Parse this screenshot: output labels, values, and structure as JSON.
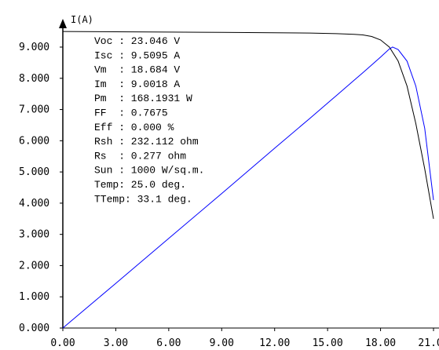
{
  "chart_data": {
    "type": "line",
    "ylabel": "I(A)",
    "xlabel": "",
    "xlim": [
      0,
      21.0
    ],
    "ylim": [
      0,
      9.5095
    ],
    "x_ticks": [
      "0.00",
      "3.00",
      "6.00",
      "9.00",
      "12.00",
      "15.00",
      "18.00",
      "21.00"
    ],
    "x_tick_values": [
      0,
      3,
      6,
      9,
      12,
      15,
      18,
      21
    ],
    "y_ticks": [
      "0.000",
      "1.000",
      "2.000",
      "3.000",
      "4.000",
      "5.000",
      "6.000",
      "7.000",
      "8.000",
      "9.000"
    ],
    "y_tick_values": [
      0,
      1,
      2,
      3,
      4,
      5,
      6,
      7,
      8,
      9
    ],
    "grid": false,
    "series": [
      {
        "color": "#000000",
        "x": [
          0,
          3,
          6,
          9,
          12,
          14,
          15.5,
          16.5,
          17.0,
          17.5,
          18.0,
          18.5,
          19.0,
          19.5,
          20.0,
          20.5,
          21.0
        ],
        "y": [
          9.5,
          9.49,
          9.48,
          9.47,
          9.46,
          9.45,
          9.43,
          9.41,
          9.39,
          9.34,
          9.23,
          9.0,
          8.55,
          7.75,
          6.55,
          5.1,
          3.5
        ]
      },
      {
        "color": "#0000ff",
        "x": [
          0,
          3,
          6,
          9,
          12,
          14,
          15.5,
          16.5,
          17.0,
          17.5,
          18.0,
          18.5,
          18.684,
          19.0,
          19.5,
          20.0,
          20.5,
          21.0
        ],
        "y": [
          0,
          1.43,
          2.87,
          4.31,
          5.76,
          6.72,
          7.45,
          7.94,
          8.18,
          8.43,
          8.68,
          8.94,
          9.0018,
          8.92,
          8.55,
          7.75,
          6.4,
          4.1
        ]
      }
    ],
    "info_lines": [
      "Voc : 23.046 V",
      "Isc : 9.5095 A",
      "Vm  : 18.684 V",
      "Im  : 9.0018 A",
      "Pm  : 168.1931 W",
      "FF  : 0.7675",
      "Eff : 0.000 %",
      "Rsh : 232.112 ohm",
      "Rs  : 0.277 ohm",
      "Sun : 1000 W/sq.m.",
      "Temp: 25.0 deg.",
      "TTemp: 33.1 deg."
    ]
  }
}
